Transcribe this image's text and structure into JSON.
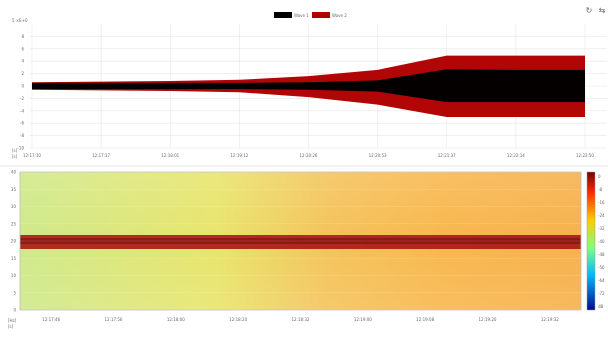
{
  "colors": {
    "series_1": "#000000",
    "series_2": "#b00000",
    "grid": "#e6e6e6",
    "axis_text": "#666666",
    "spectrogram_band": "#a81212"
  },
  "toolbar": {
    "reset_icon": "refresh-icon",
    "pan_icon": "pan-icon"
  },
  "chart_data": [
    {
      "type": "area",
      "legend": [
        "Wave 1",
        "Wave 2"
      ],
      "legend_position": "top-center",
      "y_axis_top_label": "5 ×E+0",
      "y_unit_label": "[s]",
      "x_unit_label": "[s]",
      "yticks": [
        8,
        6,
        4,
        2,
        0,
        -2,
        -4,
        -6,
        -8,
        -10
      ],
      "xticks": [
        "12:17:10",
        "12:17:17",
        "12:18:01",
        "12:19:12",
        "12:20:26",
        "12:20:53",
        "12:21:37",
        "12:22:14",
        "12:22:50"
      ],
      "grid": true,
      "ylim": [
        -10,
        10
      ],
      "series": [
        {
          "name": "Wave 1",
          "x_index": [
            0,
            1,
            2,
            3,
            4,
            5,
            6,
            7,
            8
          ],
          "upper": [
            0.5,
            0.5,
            0.5,
            0.5,
            0.6,
            0.9,
            2.7,
            2.6,
            2.6
          ],
          "lower": [
            -0.5,
            -0.5,
            -0.5,
            -0.5,
            -0.6,
            -0.9,
            -2.6,
            -2.6,
            -2.6
          ]
        },
        {
          "name": "Wave 2",
          "x_index": [
            0,
            1,
            2,
            3,
            4,
            5,
            6,
            7,
            8
          ],
          "upper": [
            0.6,
            0.7,
            0.8,
            1.0,
            1.6,
            2.6,
            4.9,
            4.9,
            4.9
          ],
          "lower": [
            -0.6,
            -0.7,
            -0.8,
            -1.0,
            -1.8,
            -3.0,
            -5.0,
            -5.0,
            -5.0
          ]
        }
      ]
    },
    {
      "type": "heatmap",
      "y_unit_label": "[Hz]",
      "x_unit_label": "[s]",
      "yticks": [
        40,
        35,
        30,
        25,
        20,
        15,
        10,
        5,
        0
      ],
      "xticks": [
        "12:17:46",
        "12:17:56",
        "12:18:00",
        "12:18:20",
        "12:18:32",
        "12:19:00",
        "12:19:08",
        "12:19:20",
        "12:19:32"
      ],
      "colorbar_ticks": [
        "0",
        "-8",
        "-16",
        "-24",
        "-32",
        "-40",
        "-48",
        "-56",
        "-64",
        "-72",
        "dB"
      ],
      "band_frequency": 21
    }
  ]
}
